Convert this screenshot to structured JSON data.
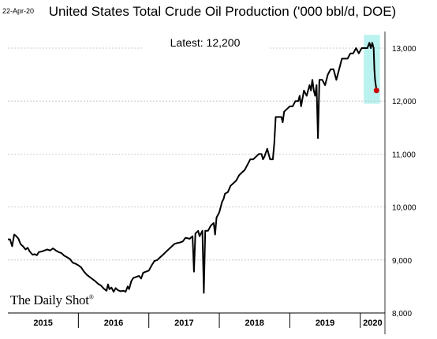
{
  "header": {
    "date": "22-Apr-20",
    "title": "United States Total Crude Oil Production ('000 bbl/d, DOE)"
  },
  "annotation": {
    "latest": "Latest:  12,200"
  },
  "brand": {
    "name": "The Daily Shot",
    "mark": "®"
  },
  "chart_data": {
    "type": "line",
    "title": "United States Total Crude Oil Production ('000 bbl/d, DOE)",
    "xlabel": "",
    "ylabel": "",
    "ylim": [
      8000,
      13300
    ],
    "yticks": [
      8000,
      9000,
      10000,
      11000,
      12000,
      13000
    ],
    "ytick_labels": [
      "8,000",
      "9,000",
      "10,000",
      "11,000",
      "12,000",
      "13,000"
    ],
    "xlim": [
      2015.0,
      2020.35
    ],
    "year_labels": [
      "2015",
      "2016",
      "2017",
      "2018",
      "2019",
      "2020"
    ],
    "year_starts": [
      2015,
      2016,
      2017,
      2018,
      2019,
      2020
    ],
    "grid": "horizontal dashed",
    "highlight_region": {
      "x": [
        2020.05,
        2020.28
      ],
      "y": [
        11950,
        13250
      ],
      "color": "#aef0ec"
    },
    "latest_marker": {
      "x": 2020.23,
      "y": 12200,
      "color": "#cc0000"
    },
    "series": [
      {
        "color": "#000000",
        "points": [
          [
            2015.0,
            9390
          ],
          [
            2015.03,
            9390
          ],
          [
            2015.06,
            9260
          ],
          [
            2015.09,
            9480
          ],
          [
            2015.12,
            9450
          ],
          [
            2015.15,
            9400
          ],
          [
            2015.18,
            9300
          ],
          [
            2015.22,
            9250
          ],
          [
            2015.25,
            9200
          ],
          [
            2015.28,
            9230
          ],
          [
            2015.31,
            9160
          ],
          [
            2015.35,
            9100
          ],
          [
            2015.38,
            9110
          ],
          [
            2015.41,
            9090
          ],
          [
            2015.44,
            9150
          ],
          [
            2015.48,
            9160
          ],
          [
            2015.52,
            9180
          ],
          [
            2015.56,
            9200
          ],
          [
            2015.6,
            9180
          ],
          [
            2015.64,
            9220
          ],
          [
            2015.68,
            9180
          ],
          [
            2015.72,
            9150
          ],
          [
            2015.76,
            9130
          ],
          [
            2015.8,
            9080
          ],
          [
            2015.84,
            9050
          ],
          [
            2015.88,
            9020
          ],
          [
            2015.92,
            8950
          ],
          [
            2015.96,
            8930
          ],
          [
            2016.0,
            8900
          ],
          [
            2016.04,
            8860
          ],
          [
            2016.08,
            8780
          ],
          [
            2016.12,
            8720
          ],
          [
            2016.16,
            8680
          ],
          [
            2016.2,
            8640
          ],
          [
            2016.24,
            8600
          ],
          [
            2016.28,
            8550
          ],
          [
            2016.32,
            8520
          ],
          [
            2016.36,
            8460
          ],
          [
            2016.4,
            8420
          ],
          [
            2016.42,
            8540
          ],
          [
            2016.44,
            8450
          ],
          [
            2016.47,
            8480
          ],
          [
            2016.5,
            8400
          ],
          [
            2016.53,
            8470
          ],
          [
            2016.56,
            8430
          ],
          [
            2016.6,
            8410
          ],
          [
            2016.64,
            8420
          ],
          [
            2016.67,
            8400
          ],
          [
            2016.7,
            8500
          ],
          [
            2016.72,
            8450
          ],
          [
            2016.75,
            8600
          ],
          [
            2016.78,
            8660
          ],
          [
            2016.82,
            8680
          ],
          [
            2016.86,
            8700
          ],
          [
            2016.89,
            8650
          ],
          [
            2016.92,
            8760
          ],
          [
            2016.96,
            8780
          ],
          [
            2017.0,
            8800
          ],
          [
            2017.04,
            8900
          ],
          [
            2017.08,
            8980
          ],
          [
            2017.12,
            9000
          ],
          [
            2017.16,
            9050
          ],
          [
            2017.2,
            9100
          ],
          [
            2017.24,
            9150
          ],
          [
            2017.28,
            9200
          ],
          [
            2017.32,
            9250
          ],
          [
            2017.36,
            9300
          ],
          [
            2017.4,
            9320
          ],
          [
            2017.44,
            9330
          ],
          [
            2017.48,
            9350
          ],
          [
            2017.52,
            9420
          ],
          [
            2017.58,
            9400
          ],
          [
            2017.62,
            9450
          ],
          [
            2017.64,
            8780
          ],
          [
            2017.66,
            9500
          ],
          [
            2017.7,
            9550
          ],
          [
            2017.72,
            9450
          ],
          [
            2017.74,
            9500
          ],
          [
            2017.76,
            9550
          ],
          [
            2017.78,
            8380
          ],
          [
            2017.8,
            9550
          ],
          [
            2017.84,
            9550
          ],
          [
            2017.88,
            9650
          ],
          [
            2017.92,
            9700
          ],
          [
            2017.94,
            9480
          ],
          [
            2017.96,
            9800
          ],
          [
            2018.0,
            9900
          ],
          [
            2018.02,
            10000
          ],
          [
            2018.04,
            10100
          ],
          [
            2018.06,
            10150
          ],
          [
            2018.08,
            10250
          ],
          [
            2018.12,
            10280
          ],
          [
            2018.16,
            10400
          ],
          [
            2018.2,
            10450
          ],
          [
            2018.24,
            10500
          ],
          [
            2018.28,
            10600
          ],
          [
            2018.32,
            10650
          ],
          [
            2018.36,
            10700
          ],
          [
            2018.4,
            10800
          ],
          [
            2018.44,
            10900
          ],
          [
            2018.48,
            10900
          ],
          [
            2018.52,
            10950
          ],
          [
            2018.56,
            11000
          ],
          [
            2018.6,
            11000
          ],
          [
            2018.62,
            10900
          ],
          [
            2018.64,
            10950
          ],
          [
            2018.68,
            11100
          ],
          [
            2018.72,
            10900
          ],
          [
            2018.76,
            10900
          ],
          [
            2018.78,
            11200
          ],
          [
            2018.8,
            11700
          ],
          [
            2018.84,
            11700
          ],
          [
            2018.88,
            11700
          ],
          [
            2018.9,
            11600
          ],
          [
            2018.92,
            11800
          ],
          [
            2018.96,
            11850
          ],
          [
            2019.0,
            11900
          ],
          [
            2019.04,
            11900
          ],
          [
            2019.08,
            12000
          ],
          [
            2019.12,
            12000
          ],
          [
            2019.14,
            12100
          ],
          [
            2019.16,
            11900
          ],
          [
            2019.2,
            12200
          ],
          [
            2019.24,
            12100
          ],
          [
            2019.28,
            12300
          ],
          [
            2019.3,
            12200
          ],
          [
            2019.32,
            12400
          ],
          [
            2019.34,
            12200
          ],
          [
            2019.36,
            12100
          ],
          [
            2019.38,
            12300
          ],
          [
            2019.4,
            11300
          ],
          [
            2019.42,
            12400
          ],
          [
            2019.46,
            12400
          ],
          [
            2019.5,
            12300
          ],
          [
            2019.54,
            12500
          ],
          [
            2019.58,
            12600
          ],
          [
            2019.62,
            12600
          ],
          [
            2019.66,
            12400
          ],
          [
            2019.7,
            12600
          ],
          [
            2019.74,
            12800
          ],
          [
            2019.78,
            12800
          ],
          [
            2019.82,
            12800
          ],
          [
            2019.86,
            12900
          ],
          [
            2019.9,
            12900
          ],
          [
            2019.94,
            13000
          ],
          [
            2019.98,
            12900
          ],
          [
            2020.02,
            13000
          ],
          [
            2020.06,
            13000
          ],
          [
            2020.1,
            13000
          ],
          [
            2020.13,
            13100
          ],
          [
            2020.15,
            13000
          ],
          [
            2020.17,
            13100
          ],
          [
            2020.19,
            13000
          ],
          [
            2020.2,
            12600
          ],
          [
            2020.21,
            12400
          ],
          [
            2020.22,
            12300
          ],
          [
            2020.23,
            12200
          ]
        ]
      }
    ]
  }
}
